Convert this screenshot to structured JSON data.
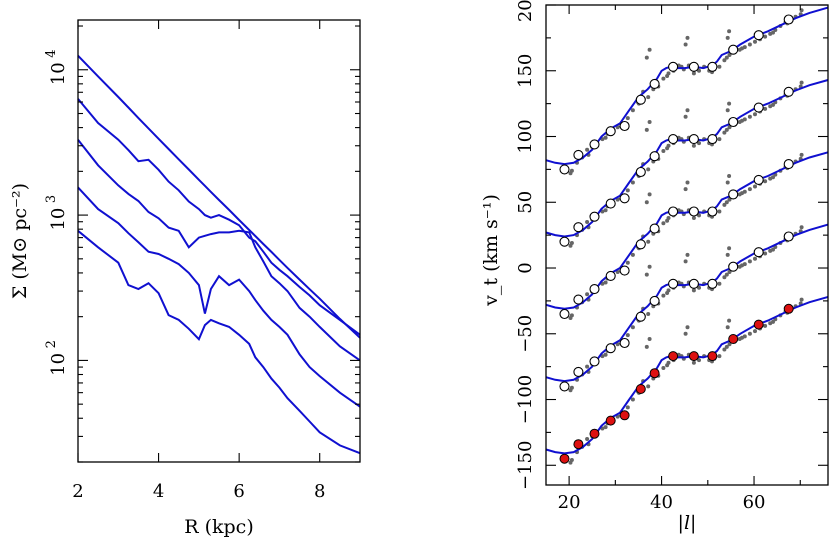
{
  "chart_data": [
    {
      "type": "line",
      "title": "",
      "xlabel": "R (kpc)",
      "ylabel": "Σ (M⊙ pc⁻²)",
      "xlim": [
        2,
        9
      ],
      "ylim": [
        20,
        22000
      ],
      "yscale": "log",
      "xticks": [
        "2",
        "4",
        "6",
        "8"
      ],
      "ytick_bases": [
        "10",
        "10",
        "10"
      ],
      "ytick_exponents": [
        "2",
        "3",
        "4"
      ],
      "grid": false,
      "line_color": "#1010d0",
      "x": [
        2.0,
        2.5,
        3.0,
        3.25,
        3.5,
        3.75,
        4.0,
        4.25,
        4.5,
        4.75,
        5.0,
        5.15,
        5.3,
        5.5,
        5.75,
        6.0,
        6.25,
        6.4,
        6.6,
        6.8,
        7.0,
        7.2,
        7.5,
        7.75,
        8.0,
        8.5,
        9.0
      ],
      "series": [
        {
          "values": [
            12500,
            9000,
            6500,
            5500,
            4650,
            3950,
            3350,
            2850,
            2420,
            2060,
            1750,
            1590,
            1445,
            1270,
            1085,
            925,
            790,
            718,
            633,
            558,
            492,
            433,
            360,
            309,
            266,
            193,
            143
          ]
        },
        {
          "values": [
            6300,
            4300,
            3300,
            2800,
            2350,
            2400,
            2050,
            1700,
            1480,
            1240,
            1100,
            1000,
            960,
            1000,
            930,
            850,
            700,
            660,
            560,
            470,
            420,
            380,
            320,
            280,
            240,
            190,
            150
          ]
        },
        {
          "values": [
            3300,
            2200,
            1600,
            1400,
            1250,
            1050,
            950,
            820,
            780,
            600,
            700,
            720,
            740,
            760,
            760,
            780,
            760,
            600,
            480,
            380,
            340,
            300,
            230,
            200,
            170,
            125,
            100
          ]
        },
        {
          "values": [
            1550,
            1100,
            880,
            750,
            650,
            560,
            540,
            500,
            460,
            400,
            330,
            210,
            310,
            380,
            330,
            360,
            300,
            260,
            220,
            190,
            170,
            150,
            110,
            90,
            78,
            60,
            48
          ]
        },
        {
          "values": [
            780,
            600,
            470,
            330,
            310,
            340,
            290,
            205,
            190,
            165,
            140,
            175,
            190,
            180,
            170,
            150,
            130,
            105,
            90,
            75,
            65,
            55,
            45,
            38,
            32,
            26,
            23
          ]
        }
      ]
    },
    {
      "type": "scatter",
      "title": "",
      "xlabel": "|l|",
      "ylabel": "v_t (km s⁻¹)",
      "xlim": [
        15,
        76
      ],
      "ylim": [
        -165,
        200
      ],
      "xticks": [
        "20",
        "40",
        "60"
      ],
      "yticks": [
        "−150",
        "−100",
        "−50",
        "0",
        "50",
        "100",
        "150",
        "200"
      ],
      "ytick_values": [
        -150,
        -100,
        -50,
        0,
        50,
        100,
        150,
        200
      ],
      "grid": false,
      "line_color": "#1010d0",
      "data_color": "#666666",
      "highlight_color": "#dd1111",
      "curve_offsets": [
        0,
        55,
        110,
        165,
        220
      ],
      "model_curve": {
        "x": [
          15,
          17,
          19,
          21,
          23,
          25,
          27,
          29,
          31,
          33,
          35,
          37,
          39,
          40,
          41,
          42,
          43,
          45,
          47,
          49,
          51,
          52,
          53,
          55,
          57,
          60,
          63,
          66,
          69,
          72,
          76
        ],
        "y": [
          -138,
          -140,
          -141,
          -140,
          -136,
          -130,
          -120,
          -114,
          -110,
          -100,
          -90,
          -84,
          -76,
          -70,
          -68,
          -67,
          -68,
          -68,
          -67,
          -68,
          -66,
          -63,
          -58,
          -55,
          -50,
          -44,
          -40,
          -35,
          -30,
          -26,
          -22
        ]
      },
      "open_markers": {
        "x": [
          19.0,
          22.0,
          25.5,
          29.0,
          32.0,
          35.5,
          38.5,
          42.5,
          47.0,
          51.0,
          55.5,
          61.0,
          67.5
        ],
        "y": [
          -145,
          -134,
          -126,
          -116,
          -112,
          -92,
          -80,
          -67,
          -67,
          -67,
          -54,
          -43,
          -31
        ]
      },
      "scatter_points": {
        "x": [
          20.6,
          21.7,
          22.8,
          23.9,
          25.0,
          26.1,
          27.2,
          28.3,
          29.4,
          30.5,
          31.6,
          32.7,
          33.8,
          34.9,
          36.0,
          37.1,
          38.2,
          39.3,
          40.4,
          41.5,
          42.6,
          43.7,
          44.8,
          45.9,
          47.0,
          48.1,
          49.2,
          50.3,
          51.4,
          52.5,
          53.6,
          54.7,
          55.8,
          56.9,
          58.0,
          59.1,
          60.2,
          61.3,
          62.4,
          63.5,
          64.6,
          65.7,
          66.8,
          67.9,
          69.0,
          70.1,
          20.3,
          24.2,
          27.9,
          31.3,
          35.1,
          38.8,
          41.2,
          44.3,
          47.7,
          50.9,
          54.1,
          57.4,
          60.8,
          64.1,
          67.2,
          70.3,
          36.8,
          37.4,
          45.2,
          45.6,
          54.3,
          54.6
        ],
        "y": [
          -146,
          -140,
          -136,
          -130,
          -128,
          -126,
          -122,
          -118,
          -116,
          -113,
          -110,
          -106,
          -100,
          -94,
          -86,
          -90,
          -84,
          -82,
          -76,
          -72,
          -70,
          -66,
          -69,
          -66,
          -72,
          -70,
          -67,
          -70,
          -69,
          -67,
          -62,
          -58,
          -56,
          -54,
          -52,
          -50,
          -48,
          -46,
          -44,
          -42,
          -39,
          -36,
          -33,
          -31,
          -29,
          -27,
          -148,
          -134,
          -121,
          -112,
          -95,
          -78,
          -74,
          -67,
          -68,
          -71,
          -60,
          -53,
          -45,
          -41,
          -34,
          -24,
          -60,
          -54,
          -50,
          -45,
          -45,
          -40
        ]
      },
      "filled_marker_x": [
        19.0,
        22.0,
        25.5,
        29.0,
        32.0,
        35.5,
        38.5,
        42.5,
        47.0,
        51.0,
        55.5,
        61.0,
        67.5
      ],
      "filled_marker_y": [
        -145,
        -134,
        -126,
        -116,
        -112,
        -92,
        -80,
        -67,
        -67,
        -67,
        -54,
        -43,
        -31
      ]
    }
  ]
}
